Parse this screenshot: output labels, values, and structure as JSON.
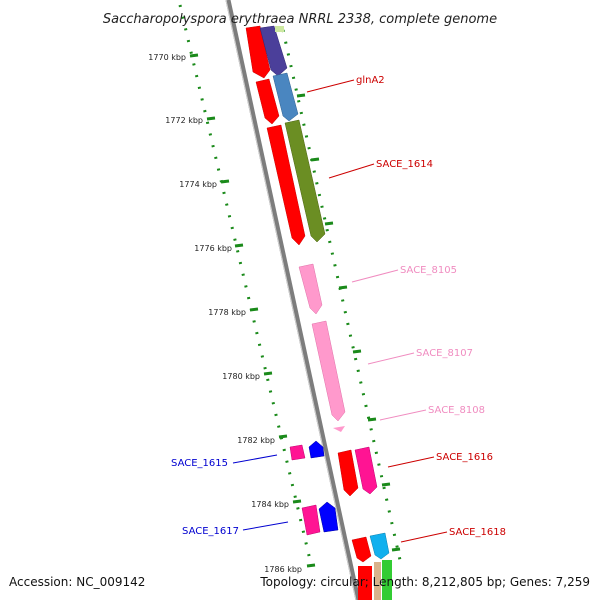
{
  "map": {
    "title": "Saccharopolyspora erythraea NRRL 2338, complete genome",
    "accession": "Accession: NC_009142",
    "summary": "Topology: circular; Length: 8,212,805 bp; Genes: 7,259"
  },
  "ticks": [
    {
      "label": "1770 kbp"
    },
    {
      "label": "1772 kbp"
    },
    {
      "label": "1774 kbp"
    },
    {
      "label": "1776 kbp"
    },
    {
      "label": "1778 kbp"
    },
    {
      "label": "1780 kbp"
    },
    {
      "label": "1782 kbp"
    },
    {
      "label": "1784 kbp"
    },
    {
      "label": "1786 kbp"
    }
  ],
  "genes": [
    {
      "label": "glnA2",
      "color": "#e00000"
    },
    {
      "label": "SACE_1614",
      "color": "#e00000"
    },
    {
      "label": "SACE_8105",
      "color": "#f08cc0"
    },
    {
      "label": "SACE_8107",
      "color": "#f08cc0"
    },
    {
      "label": "SACE_8108",
      "color": "#f08cc0"
    },
    {
      "label": "SACE_1616",
      "color": "#e00000"
    },
    {
      "label": "SACE_1615",
      "color": "#0000d0"
    },
    {
      "label": "SACE_1617",
      "color": "#0000d0"
    },
    {
      "label": "SACE_1618",
      "color": "#e00000"
    }
  ],
  "colors": {
    "backbone": "#8a8a8a",
    "dots": "#1a8a1a",
    "red": "#ff0000",
    "purple": "#4b3f9a",
    "steelblue": "#4a86c0",
    "olive": "#6b8e23",
    "pink": "#ff99cc",
    "magenta": "#ff1493",
    "blue": "#0000ff",
    "cyan": "#11b0ee",
    "green": "#33cc33"
  }
}
